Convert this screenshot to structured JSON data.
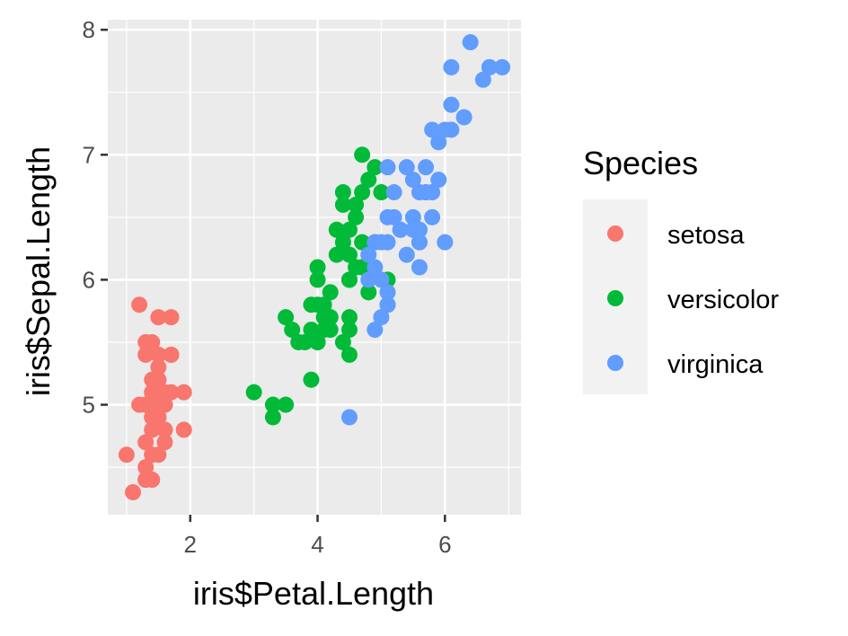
{
  "chart_data": {
    "type": "scatter",
    "xlabel": "iris$Petal.Length",
    "ylabel": "iris$Sepal.Length",
    "xlim": [
      0.705,
      7.195
    ],
    "ylim": [
      4.12,
      8.08
    ],
    "x_ticks": [
      2,
      4,
      6
    ],
    "y_ticks": [
      5,
      6,
      7,
      8
    ],
    "x_minor": [
      1,
      3,
      5,
      7
    ],
    "y_minor": [
      4.5,
      5.5,
      6.5,
      7.5
    ],
    "grid": true,
    "panel_background": "#ebebeb",
    "legend": {
      "title": "Species",
      "position": "right"
    },
    "series": [
      {
        "name": "setosa",
        "color": "#F8766D",
        "points": [
          [
            1.4,
            5.1
          ],
          [
            1.4,
            4.9
          ],
          [
            1.3,
            4.7
          ],
          [
            1.5,
            4.6
          ],
          [
            1.4,
            5.0
          ],
          [
            1.7,
            5.4
          ],
          [
            1.4,
            4.6
          ],
          [
            1.5,
            5.0
          ],
          [
            1.4,
            4.4
          ],
          [
            1.5,
            4.9
          ],
          [
            1.5,
            5.4
          ],
          [
            1.6,
            4.8
          ],
          [
            1.4,
            4.8
          ],
          [
            1.1,
            4.3
          ],
          [
            1.2,
            5.8
          ],
          [
            1.5,
            5.7
          ],
          [
            1.3,
            5.4
          ],
          [
            1.4,
            5.1
          ],
          [
            1.7,
            5.7
          ],
          [
            1.5,
            5.1
          ],
          [
            1.7,
            5.4
          ],
          [
            1.5,
            5.1
          ],
          [
            1.0,
            4.6
          ],
          [
            1.7,
            5.1
          ],
          [
            1.9,
            4.8
          ],
          [
            1.6,
            5.0
          ],
          [
            1.6,
            5.0
          ],
          [
            1.5,
            5.2
          ],
          [
            1.4,
            5.2
          ],
          [
            1.6,
            4.7
          ],
          [
            1.6,
            4.8
          ],
          [
            1.5,
            5.4
          ],
          [
            1.5,
            5.2
          ],
          [
            1.4,
            5.5
          ],
          [
            1.5,
            4.9
          ],
          [
            1.2,
            5.0
          ],
          [
            1.3,
            5.5
          ],
          [
            1.4,
            4.9
          ],
          [
            1.3,
            4.4
          ],
          [
            1.5,
            5.1
          ],
          [
            1.3,
            5.0
          ],
          [
            1.3,
            4.5
          ],
          [
            1.3,
            4.4
          ],
          [
            1.6,
            5.0
          ],
          [
            1.9,
            5.1
          ],
          [
            1.4,
            4.8
          ],
          [
            1.6,
            5.1
          ],
          [
            1.4,
            4.6
          ],
          [
            1.5,
            5.3
          ],
          [
            1.4,
            5.0
          ]
        ]
      },
      {
        "name": "versicolor",
        "color": "#00BA38",
        "points": [
          [
            4.7,
            7.0
          ],
          [
            4.5,
            6.4
          ],
          [
            4.9,
            6.9
          ],
          [
            4.0,
            5.5
          ],
          [
            4.6,
            6.5
          ],
          [
            4.5,
            5.7
          ],
          [
            4.7,
            6.3
          ],
          [
            3.3,
            4.9
          ],
          [
            4.6,
            6.6
          ],
          [
            3.9,
            5.2
          ],
          [
            3.5,
            5.0
          ],
          [
            4.2,
            5.9
          ],
          [
            4.0,
            6.0
          ],
          [
            4.7,
            6.1
          ],
          [
            3.6,
            5.6
          ],
          [
            4.4,
            6.7
          ],
          [
            4.5,
            5.6
          ],
          [
            4.1,
            5.8
          ],
          [
            4.5,
            6.2
          ],
          [
            3.9,
            5.6
          ],
          [
            4.8,
            5.9
          ],
          [
            4.0,
            6.1
          ],
          [
            4.9,
            6.3
          ],
          [
            4.7,
            6.1
          ],
          [
            4.3,
            6.4
          ],
          [
            4.4,
            6.6
          ],
          [
            4.8,
            6.8
          ],
          [
            5.0,
            6.7
          ],
          [
            4.5,
            6.0
          ],
          [
            3.5,
            5.7
          ],
          [
            3.8,
            5.5
          ],
          [
            3.7,
            5.5
          ],
          [
            3.9,
            5.8
          ],
          [
            5.1,
            6.0
          ],
          [
            4.5,
            5.4
          ],
          [
            4.5,
            6.0
          ],
          [
            4.7,
            6.7
          ],
          [
            4.4,
            6.3
          ],
          [
            4.1,
            5.6
          ],
          [
            4.0,
            5.5
          ],
          [
            4.4,
            5.5
          ],
          [
            4.6,
            6.1
          ],
          [
            4.0,
            5.8
          ],
          [
            3.3,
            5.0
          ],
          [
            4.2,
            5.6
          ],
          [
            4.2,
            5.7
          ],
          [
            4.2,
            5.7
          ],
          [
            4.3,
            6.2
          ],
          [
            3.0,
            5.1
          ],
          [
            4.1,
            5.7
          ]
        ]
      },
      {
        "name": "virginica",
        "color": "#619CFF",
        "points": [
          [
            6.0,
            6.3
          ],
          [
            5.1,
            5.8
          ],
          [
            5.9,
            7.1
          ],
          [
            5.6,
            6.3
          ],
          [
            5.8,
            6.5
          ],
          [
            6.6,
            7.6
          ],
          [
            4.5,
            4.9
          ],
          [
            6.3,
            7.3
          ],
          [
            5.8,
            6.7
          ],
          [
            6.1,
            7.2
          ],
          [
            5.1,
            6.5
          ],
          [
            5.3,
            6.4
          ],
          [
            5.5,
            6.8
          ],
          [
            5.0,
            5.7
          ],
          [
            5.1,
            5.8
          ],
          [
            5.3,
            6.4
          ],
          [
            5.5,
            6.5
          ],
          [
            6.7,
            7.7
          ],
          [
            6.9,
            7.7
          ],
          [
            5.0,
            6.0
          ],
          [
            5.7,
            6.9
          ],
          [
            4.9,
            5.6
          ],
          [
            6.7,
            7.7
          ],
          [
            4.9,
            6.3
          ],
          [
            5.7,
            6.7
          ],
          [
            6.0,
            7.2
          ],
          [
            4.8,
            6.2
          ],
          [
            4.9,
            6.1
          ],
          [
            5.6,
            6.4
          ],
          [
            5.8,
            7.2
          ],
          [
            6.1,
            7.4
          ],
          [
            6.4,
            7.9
          ],
          [
            5.6,
            6.4
          ],
          [
            5.1,
            6.3
          ],
          [
            5.6,
            6.1
          ],
          [
            6.1,
            7.7
          ],
          [
            5.6,
            6.3
          ],
          [
            5.5,
            6.4
          ],
          [
            4.8,
            6.0
          ],
          [
            5.4,
            6.9
          ],
          [
            5.6,
            6.7
          ],
          [
            5.1,
            6.9
          ],
          [
            5.1,
            5.8
          ],
          [
            5.9,
            6.8
          ],
          [
            5.7,
            6.7
          ],
          [
            5.2,
            6.7
          ],
          [
            5.0,
            6.3
          ],
          [
            5.2,
            6.5
          ],
          [
            5.4,
            6.2
          ],
          [
            5.1,
            5.9
          ]
        ]
      }
    ]
  }
}
